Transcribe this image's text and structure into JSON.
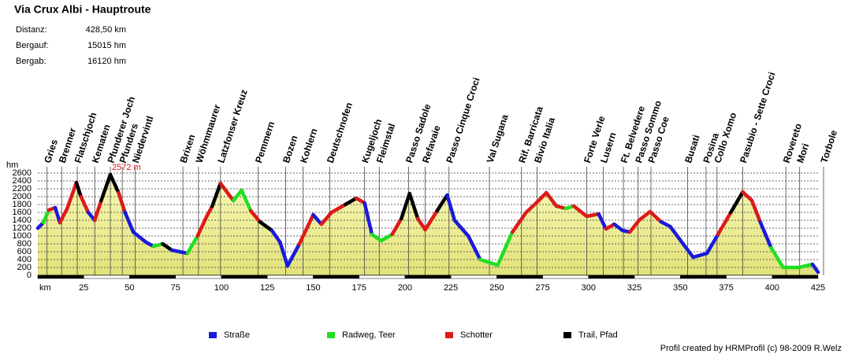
{
  "header": {
    "title": "Via Crux Albi - Hauptroute",
    "stats": [
      [
        "Distanz:",
        "428,50 km"
      ],
      [
        "Bergauf:",
        "15015 hm"
      ],
      [
        "Bergab:",
        "16120 hm"
      ]
    ]
  },
  "chart_data": {
    "type": "area",
    "y_label": "hm",
    "x_label": "km",
    "annotation": "2572 m",
    "xlim": [
      0,
      425
    ],
    "ylim": [
      0,
      2600
    ],
    "xticks": [
      25,
      50,
      75,
      100,
      125,
      150,
      175,
      200,
      225,
      250,
      275,
      300,
      325,
      350,
      375,
      400,
      425
    ],
    "yticks": [
      0,
      200,
      400,
      600,
      800,
      1000,
      1200,
      1400,
      1600,
      1800,
      2000,
      2200,
      2400,
      2600
    ],
    "grid": true,
    "x": [
      0,
      3,
      6,
      9.5,
      12,
      16,
      21,
      23.5,
      27.5,
      31,
      34.5,
      39.5,
      44,
      47.5,
      52,
      59,
      63,
      68,
      73,
      81.5,
      87,
      92,
      95,
      99.5,
      106.5,
      111,
      116,
      121,
      127.5,
      132,
      136,
      142.5,
      150,
      154.5,
      160,
      167.5,
      173.5,
      178,
      182,
      187,
      193,
      198,
      202.5,
      207,
      211,
      217.5,
      223,
      227,
      234.5,
      241,
      250.5,
      258.5,
      266,
      271.5,
      277,
      282.5,
      287.5,
      292,
      299,
      305.5,
      309.5,
      314,
      318.5,
      322.5,
      327.5,
      333.5,
      339.5,
      344.5,
      351.5,
      357,
      364.5,
      370.5,
      377.5,
      384,
      389,
      393.5,
      399.5,
      406,
      414.5,
      422,
      425
    ],
    "values": [
      1200,
      1340,
      1660,
      1720,
      1340,
      1700,
      2360,
      2000,
      1600,
      1400,
      1900,
      2560,
      2100,
      1600,
      1100,
      840,
      740,
      800,
      640,
      560,
      1000,
      1500,
      1760,
      2340,
      1900,
      2160,
      1640,
      1360,
      1140,
      840,
      240,
      800,
      1540,
      1300,
      1600,
      1800,
      1960,
      1840,
      1040,
      880,
      1040,
      1440,
      2080,
      1440,
      1160,
      1640,
      2040,
      1400,
      1000,
      400,
      260,
      1100,
      1600,
      1840,
      2100,
      1760,
      1700,
      1760,
      1500,
      1560,
      1180,
      1300,
      1140,
      1100,
      1400,
      1620,
      1360,
      1240,
      800,
      460,
      560,
      1040,
      1600,
      2120,
      1900,
      1360,
      700,
      200,
      200,
      280,
      80
    ],
    "surface": [
      0,
      1,
      2,
      0,
      2,
      2,
      3,
      2,
      0,
      2,
      3,
      3,
      2,
      0,
      0,
      0,
      1,
      3,
      0,
      1,
      2,
      2,
      3,
      2,
      1,
      1,
      2,
      3,
      0,
      0,
      0,
      2,
      0,
      2,
      2,
      3,
      2,
      0,
      1,
      1,
      2,
      3,
      3,
      2,
      2,
      3,
      0,
      0,
      0,
      1,
      1,
      2,
      2,
      2,
      2,
      2,
      1,
      2,
      2,
      0,
      2,
      0,
      0,
      2,
      2,
      2,
      0,
      0,
      0,
      0,
      0,
      2,
      3,
      2,
      2,
      0,
      1,
      1,
      1,
      0
    ],
    "series": [
      {
        "name": "Straße",
        "color": "#1a1adc"
      },
      {
        "name": "Radweg, Teer",
        "color": "#22dd22"
      },
      {
        "name": "Schotter",
        "color": "#dd1a1a"
      },
      {
        "name": "Trail, Pfad",
        "color": "#000000"
      }
    ],
    "waypoints": [
      {
        "name": "Gries",
        "km": 5
      },
      {
        "name": "Brenner",
        "km": 13
      },
      {
        "name": "Flatschjoch",
        "km": 21.5
      },
      {
        "name": "Kematen",
        "km": 31
      },
      {
        "name": "Pfunderer Joch",
        "km": 39.5
      },
      {
        "name": "Pfunders",
        "km": 46
      },
      {
        "name": "Niedervintl",
        "km": 53
      },
      {
        "name": "Brixen",
        "km": 79
      },
      {
        "name": "Wöhmmaurer",
        "km": 87.5
      },
      {
        "name": "Latzfonser Kreuz",
        "km": 99.5
      },
      {
        "name": "Pemmern",
        "km": 120
      },
      {
        "name": "Bozen",
        "km": 135
      },
      {
        "name": "Kohlern",
        "km": 144.5
      },
      {
        "name": "Deutschnofen",
        "km": 159
      },
      {
        "name": "Kugeljoch",
        "km": 178
      },
      {
        "name": "Fleimstal",
        "km": 186
      },
      {
        "name": "Passo Sadole",
        "km": 202
      },
      {
        "name": "Refavaie",
        "km": 211
      },
      {
        "name": "Passo Cinque Croci",
        "km": 224
      },
      {
        "name": "Val Sugana",
        "km": 246
      },
      {
        "name": "Rif. Barricata",
        "km": 263.5
      },
      {
        "name": "Bivio Italia",
        "km": 272
      },
      {
        "name": "Forte Verle",
        "km": 299
      },
      {
        "name": "Lusern",
        "km": 308
      },
      {
        "name": "Ft. Belvedere",
        "km": 319
      },
      {
        "name": "Passo Sommo",
        "km": 327
      },
      {
        "name": "Passo Coe",
        "km": 334
      },
      {
        "name": "Busati",
        "km": 354
      },
      {
        "name": "Posina",
        "km": 364
      },
      {
        "name": "Collo Xomo",
        "km": 370
      },
      {
        "name": "Pasubio - Sette Croci",
        "km": 384
      },
      {
        "name": "Rovereto",
        "km": 407.5
      },
      {
        "name": "Mori",
        "km": 415
      },
      {
        "name": "Torbole",
        "km": 428
      }
    ]
  },
  "footer": "Profil created by HRMProfil (c) 98-2009 R.Welz"
}
